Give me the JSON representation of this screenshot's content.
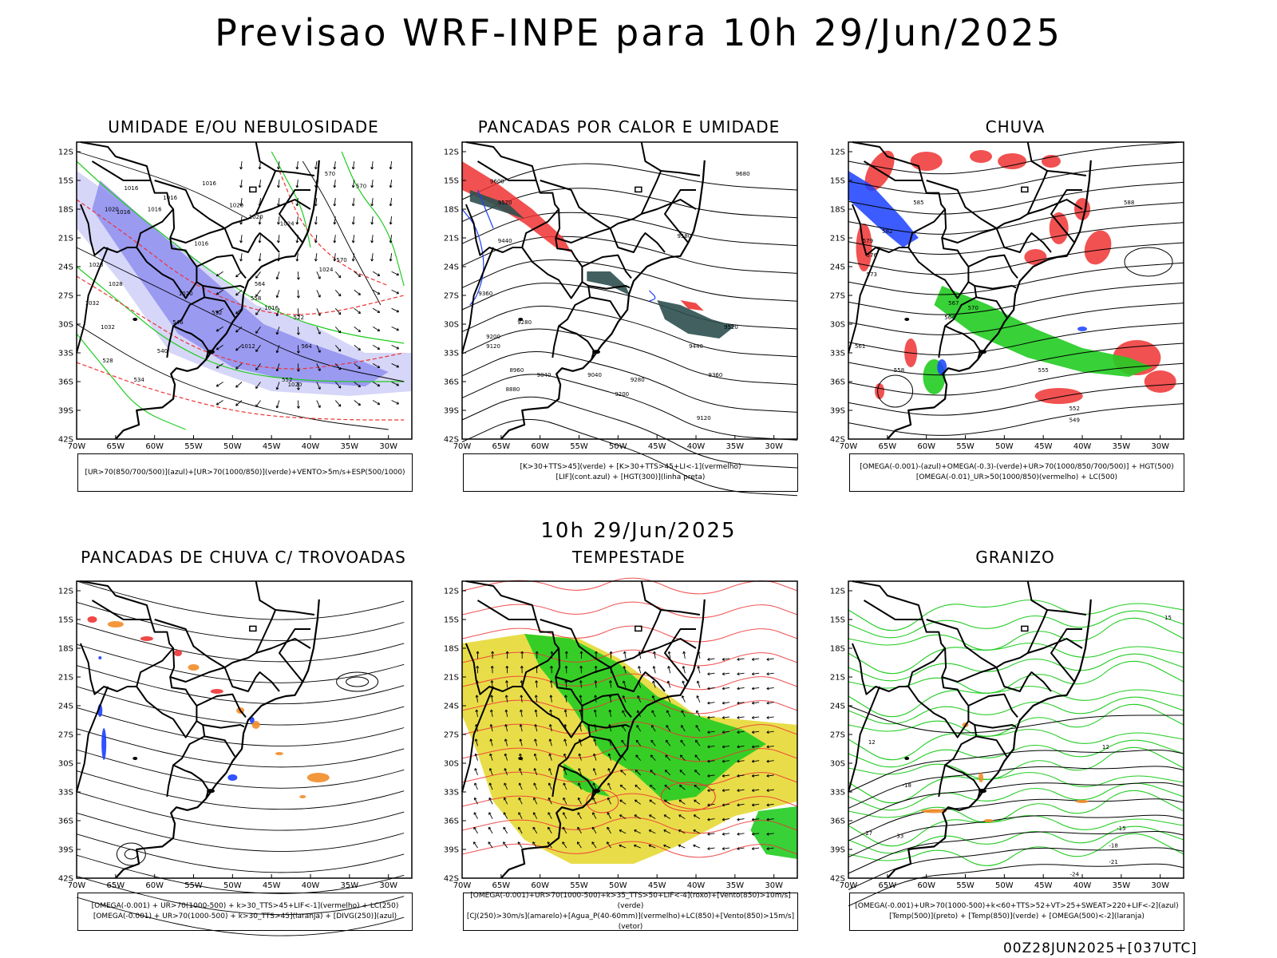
{
  "page_title": "Previsao WRF-INPE  para 10h 29/Jun/2025",
  "middle_title": "10h 29/Jun/2025",
  "footer_stamp": "00Z28JUN2025+[037UTC]",
  "axes": {
    "lat_ticks": [
      "12S",
      "15S",
      "18S",
      "21S",
      "24S",
      "27S",
      "30S",
      "33S",
      "36S",
      "39S",
      "42S"
    ],
    "lon_ticks": [
      "70W",
      "65W",
      "60W",
      "55W",
      "50W",
      "45W",
      "40W",
      "35W",
      "30W"
    ]
  },
  "panels": [
    {
      "title": "UMIDADE E/OU NEBULOSIDADE",
      "legend": [
        "[UR>70(850/700/500)](azul)+[UR>70(1000/850)](verde)+VENTO>5m/s+ESP(500/1000)"
      ]
    },
    {
      "title": "PANCADAS POR CALOR E UMIDADE",
      "legend": [
        "[K>30+TTS>45](verde) + [K>30+TTS>45+LI<-1](vermelho)",
        "[LIF](cont.azul) + [HGT(300)](linha preta)"
      ]
    },
    {
      "title": "CHUVA",
      "legend": [
        "[OMEGA(-0.001)-(azul)+OMEGA(-0.3)-(verde)+UR>70(1000/850/700/500)] + HGT(500)",
        "[OMEGA(-0.01)_UR>50(1000/850)(vermelho) + LC(500)"
      ]
    },
    {
      "title": "PANCADAS DE CHUVA C/ TROVOADAS",
      "legend": [
        "[OMEGA(-0.001) + UR>70(1000-500) + k>30_TTS>45+LIF<-1](vermelho) + LC(250)",
        "[OMEGA(-0.001) + UR>70(1000-500) + k>30_TTS>45](laranja) + [DIVG(250)](azul)"
      ]
    },
    {
      "title": "TEMPESTADE",
      "legend": [
        "[OMEGA(-0.001)+UR>70(1000-500)+k>35_TTS>50+LIF<-4](roxo)+[Vento(850)>10m/s](verde)",
        "[CJ(250)>30m/s](amarelo)+[Agua_P(40-60mm)](vermelho)+LC(850)+[Vento(850)>15m/s](vetor)"
      ]
    },
    {
      "title": "GRANIZO",
      "legend": [
        "[OMEGA(-0.001)+UR>70(1000-500)+k<60+TTS>52+VT>25+SWEAT>220+LIF<-2](azul)",
        "[Temp(500)](preto) + [Temp(850)](verde) + [OMEGA(500)<-2](laranja)"
      ]
    }
  ],
  "contour_labels": {
    "p1": [
      "1016",
      "1016",
      "1016",
      "1016",
      "1020",
      "1016",
      "1020",
      "1024",
      "1020",
      "1016",
      "1012",
      "1020",
      "1024",
      "1032",
      "1028",
      "1032",
      "1028",
      "1016",
      "1020",
      "570",
      "570",
      "570",
      "564",
      "558",
      "552",
      "546",
      "540",
      "534",
      "528",
      "522",
      "564",
      "552",
      "546"
    ],
    "p2": [
      "9680",
      "9600",
      "9520",
      "9440",
      "9360",
      "9280",
      "9200",
      "9120",
      "9040",
      "8960",
      "8880",
      "9520",
      "9440",
      "9360",
      "9280",
      "9200",
      "9120",
      "9040",
      "9580"
    ],
    "p3": [
      "585",
      "582",
      "579",
      "576",
      "573",
      "570",
      "567",
      "564",
      "561",
      "558",
      "555",
      "552",
      "549",
      "588"
    ],
    "p6": [
      "-27",
      "-33",
      "-18",
      "-15",
      "-18",
      "-21",
      "-24",
      "12",
      "15",
      "12"
    ]
  },
  "colors": {
    "blue_shade": "#8f8ff0",
    "light_blue": "#c5c5f5",
    "green": "#22cc22",
    "red": "#ee3333",
    "teal": "#2f4f4f",
    "orange": "#f28c28",
    "yellow": "#e5d935",
    "blue": "#1a3fff"
  }
}
